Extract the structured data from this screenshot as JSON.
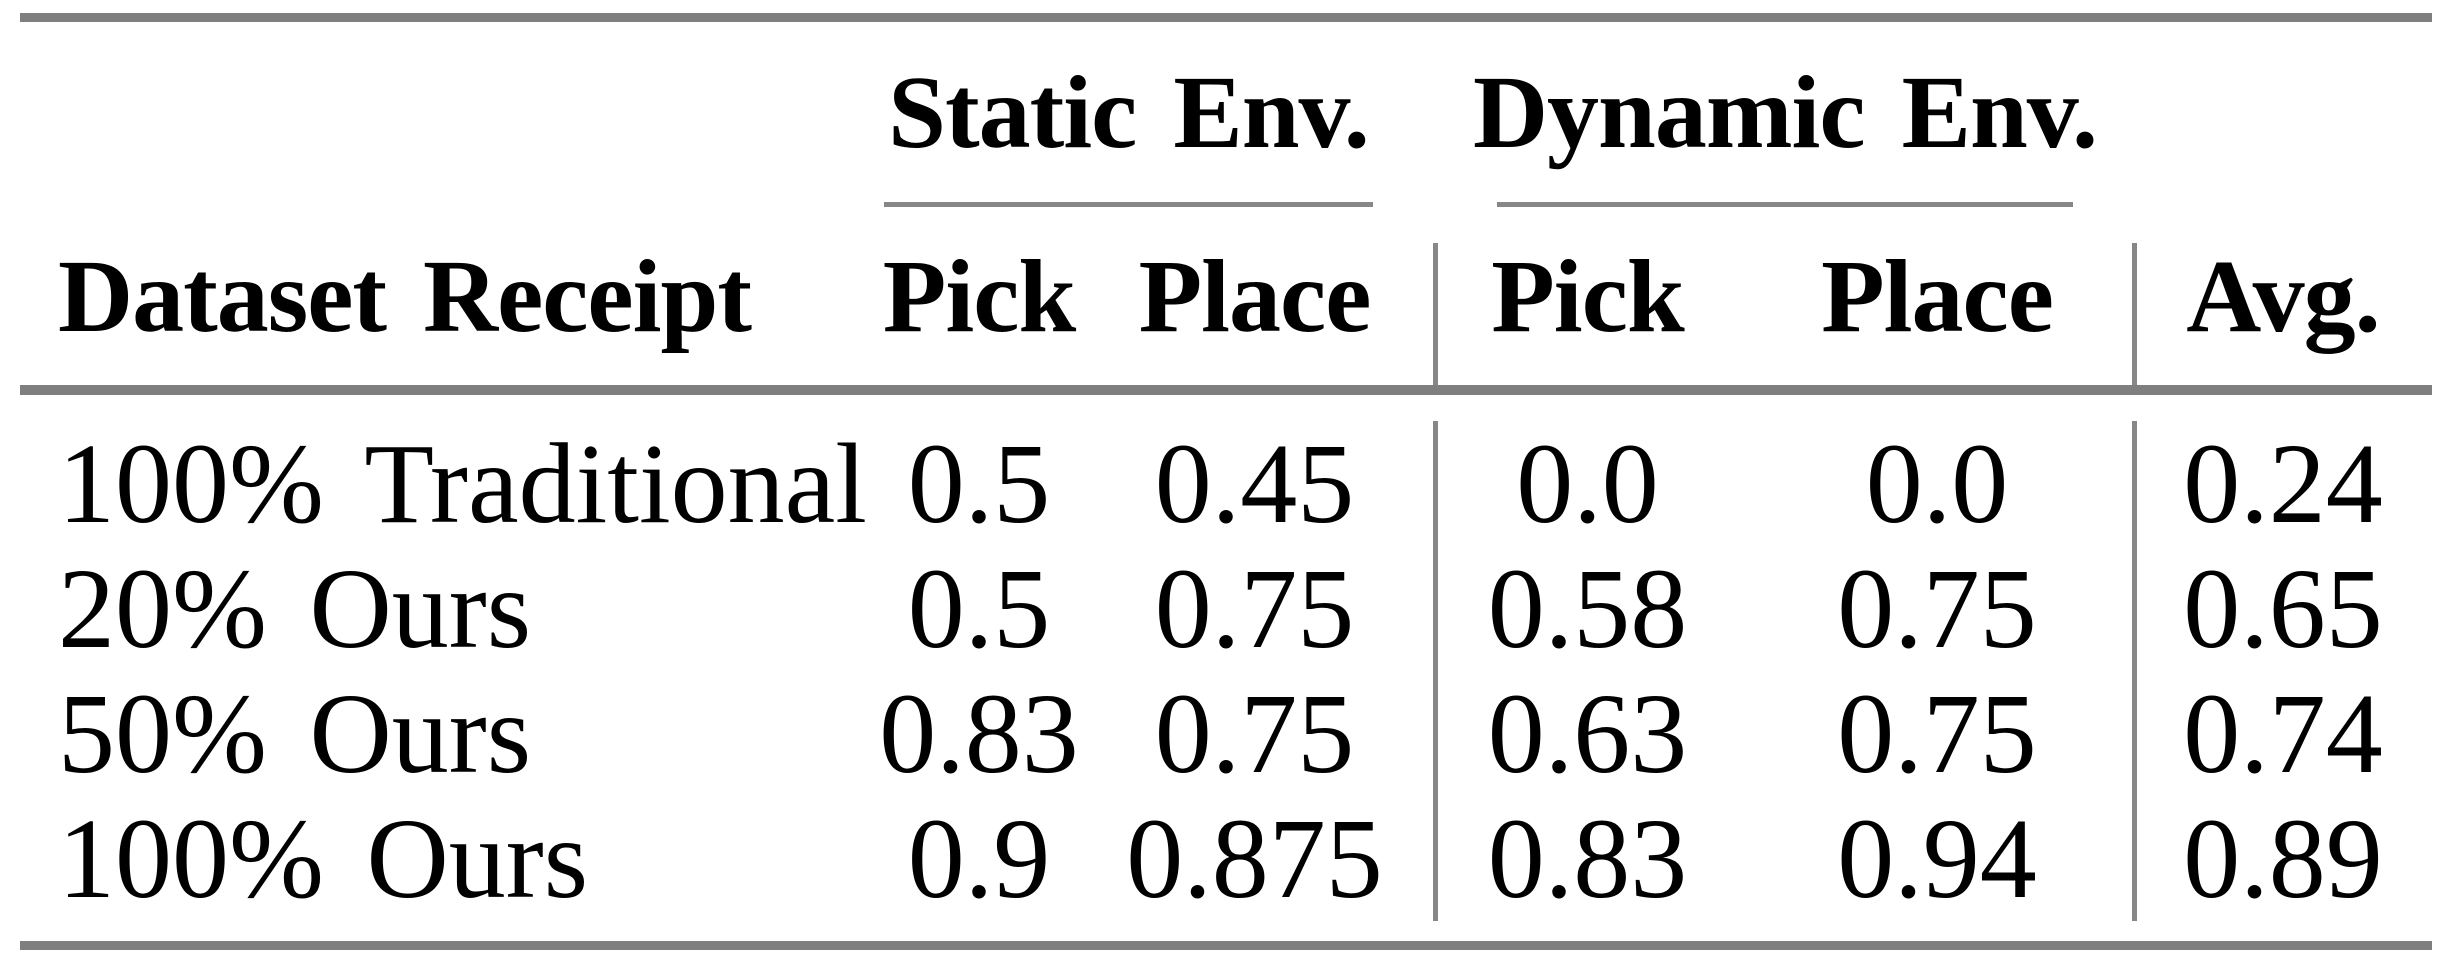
{
  "table": {
    "rule_color_thick": "#7f7f7f",
    "rule_color_thin": "#878787",
    "group_headers": {
      "static": "Static Env.",
      "dynamic": "Dynamic Env."
    },
    "column_headers": {
      "row_label": "Dataset Receipt",
      "static_pick": "Pick",
      "static_place": "Place",
      "dynamic_pick": "Pick",
      "dynamic_place": "Place",
      "avg": "Avg."
    },
    "rows": [
      {
        "label": "100% Traditional",
        "values": [
          "0.5",
          "0.45",
          "0.0",
          "0.0",
          "0.24"
        ]
      },
      {
        "label": "20% Ours",
        "values": [
          "0.5",
          "0.75",
          "0.58",
          "0.75",
          "0.65"
        ]
      },
      {
        "label": "50% Ours",
        "values": [
          "0.83",
          "0.75",
          "0.63",
          "0.75",
          "0.74"
        ]
      },
      {
        "label": "100% Ours",
        "values": [
          "0.9",
          "0.875",
          "0.83",
          "0.94",
          "0.89"
        ]
      }
    ]
  },
  "chart_data": {
    "type": "table",
    "column_groups": [
      {
        "label": "Static Env.",
        "columns": [
          "Pick",
          "Place"
        ]
      },
      {
        "label": "Dynamic Env.",
        "columns": [
          "Pick",
          "Place"
        ]
      }
    ],
    "columns": [
      "Dataset Receipt",
      "Static Pick",
      "Static Place",
      "Dynamic Pick",
      "Dynamic Place",
      "Avg."
    ],
    "rows": [
      [
        "100% Traditional",
        0.5,
        0.45,
        0.0,
        0.0,
        0.24
      ],
      [
        "20% Ours",
        0.5,
        0.75,
        0.58,
        0.75,
        0.65
      ],
      [
        "50% Ours",
        0.83,
        0.75,
        0.63,
        0.75,
        0.74
      ],
      [
        "100% Ours",
        0.9,
        0.875,
        0.83,
        0.94,
        0.89
      ]
    ]
  }
}
